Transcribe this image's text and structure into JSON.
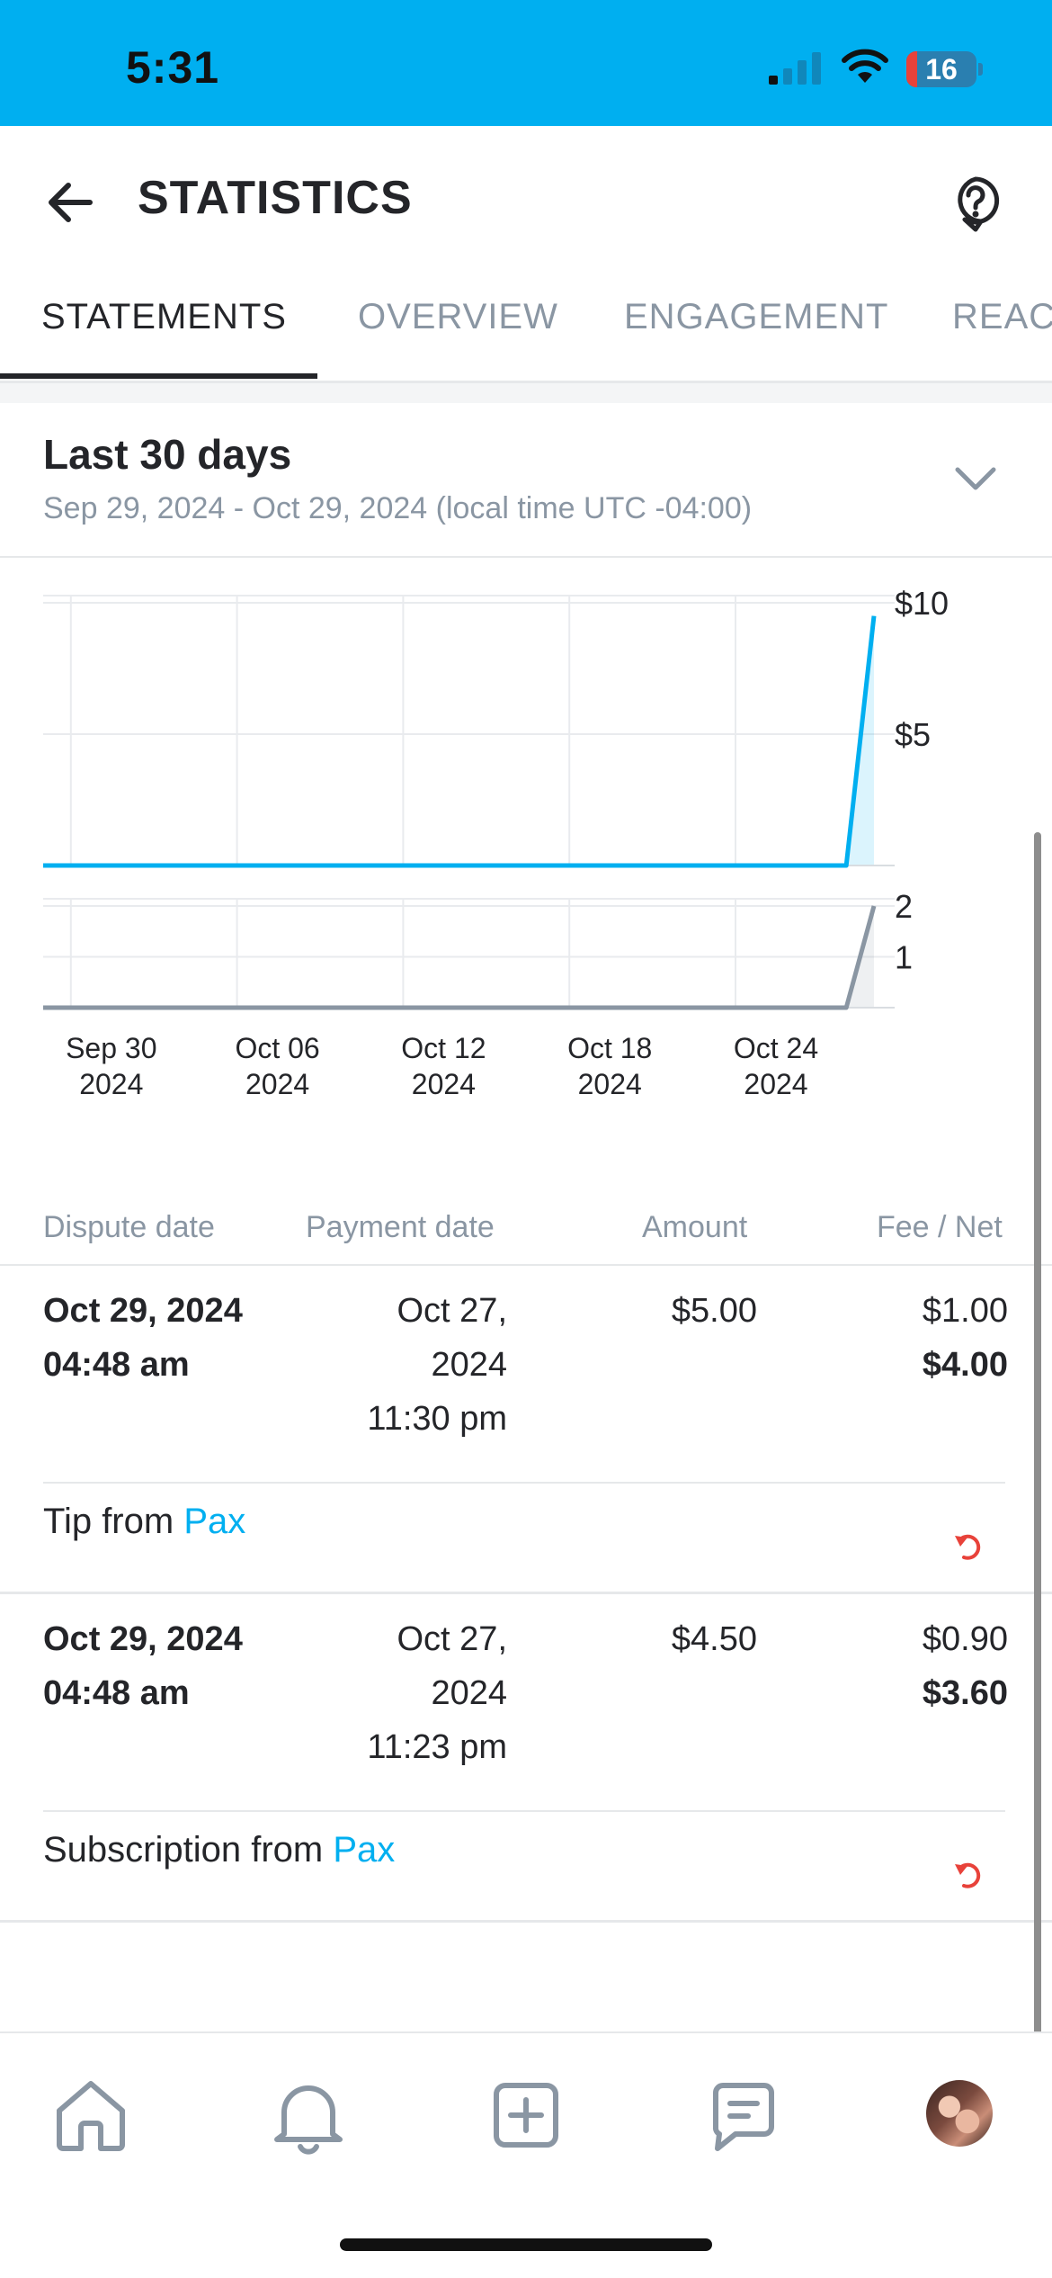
{
  "status_bar": {
    "time": "5:31",
    "battery_level": "16",
    "battery_fraction": 0.16
  },
  "header": {
    "title": "STATISTICS",
    "back_icon": "arrow-left-icon",
    "help_icon": "help-circle-icon"
  },
  "tabs": [
    {
      "label": "STATEMENTS",
      "active": true
    },
    {
      "label": "OVERVIEW",
      "active": false
    },
    {
      "label": "ENGAGEMENT",
      "active": false
    },
    {
      "label": "REACH",
      "active": false
    }
  ],
  "range": {
    "title": "Last 30 days",
    "subtitle": "Sep 29, 2024 - Oct 29, 2024 (local time UTC -04:00)"
  },
  "chart_data": {
    "type": "line",
    "x_ticks": [
      "Sep 30\n2024",
      "Oct 06\n2024",
      "Oct 12\n2024",
      "Oct 18\n2024",
      "Oct 24\n2024"
    ],
    "x_tick_dates": [
      "2024-09-30",
      "2024-10-06",
      "2024-10-12",
      "2024-10-18",
      "2024-10-24"
    ],
    "x_domain": [
      "2024-09-29",
      "2024-10-29"
    ],
    "panels": [
      {
        "name": "",
        "color": "#00aff0",
        "y_ticks": [
          "$10",
          "$5"
        ],
        "y_tick_values": [
          10,
          5
        ],
        "ylim": [
          0,
          10
        ],
        "x": [
          "2024-09-29",
          "2024-10-28",
          "2024-10-29"
        ],
        "y": [
          0,
          0,
          9.5
        ]
      },
      {
        "name": "",
        "color": "#8a96a3",
        "y_ticks": [
          "2",
          "1"
        ],
        "y_tick_values": [
          2,
          1
        ],
        "ylim": [
          0,
          2
        ],
        "x": [
          "2024-09-29",
          "2024-10-28",
          "2024-10-29"
        ],
        "y": [
          0,
          0,
          2
        ]
      }
    ],
    "grid": true,
    "legend": false
  },
  "table": {
    "headers": {
      "dispute_date": "Dispute date",
      "payment_date": "Payment date",
      "amount": "Amount",
      "fee_net": "Fee / Net"
    },
    "rows": [
      {
        "dispute_date": "Oct 29, 2024",
        "dispute_time": "04:48 am",
        "payment_date_1": "Oct 27,",
        "payment_date_2": "2024",
        "payment_time": "11:30 pm",
        "amount": "$5.00",
        "fee": "$1.00",
        "net": "$4.00",
        "desc_prefix": "Tip from",
        "desc_link": "Pax",
        "icon": "undo-icon"
      },
      {
        "dispute_date": "Oct 29, 2024",
        "dispute_time": "04:48 am",
        "payment_date_1": "Oct 27,",
        "payment_date_2": "2024",
        "payment_time": "11:23 pm",
        "amount": "$4.50",
        "fee": "$0.90",
        "net": "$3.60",
        "desc_prefix": "Subscription from",
        "desc_link": "Pax",
        "icon": "undo-icon"
      }
    ]
  },
  "bottom_nav": [
    {
      "icon": "home-icon"
    },
    {
      "icon": "bell-icon"
    },
    {
      "icon": "plus-square-icon"
    },
    {
      "icon": "message-icon"
    },
    {
      "icon": "avatar"
    }
  ],
  "colors": {
    "accent": "#00aff0",
    "text": "#242529",
    "muted": "#8a96a3",
    "danger": "#e8423a"
  }
}
